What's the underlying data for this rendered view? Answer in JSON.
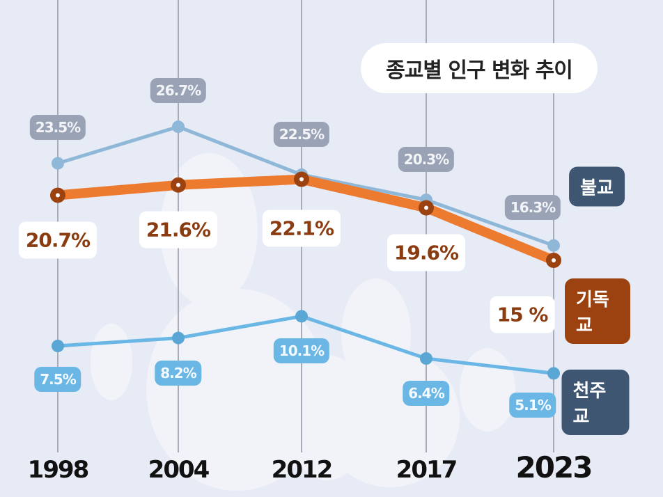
{
  "chart_data": {
    "type": "line",
    "title": "종교별 인구 변화 추이",
    "categories": [
      "1998",
      "2004",
      "2012",
      "2017",
      "2023"
    ],
    "series": [
      {
        "name": "불교",
        "values": [
          23.5,
          26.7,
          22.5,
          20.3,
          16.3
        ],
        "labels": [
          "23.5%",
          "26.7%",
          "22.5%",
          "20.3%",
          "16.3%"
        ],
        "color": "#8fb8d8",
        "tag_color": "#3f5672"
      },
      {
        "name": "기독교",
        "values": [
          20.7,
          21.6,
          22.1,
          19.6,
          15
        ],
        "labels": [
          "20.7%",
          "21.6%",
          "22.1%",
          "19.6%",
          "15 %"
        ],
        "color": "#ec7a2f",
        "tag_color": "#9c4211"
      },
      {
        "name": "천주교",
        "values": [
          7.5,
          8.2,
          10.1,
          6.4,
          5.1
        ],
        "labels": [
          "7.5%",
          "8.2%",
          "10.1%",
          "6.4%",
          "5.1%"
        ],
        "color": "#6ab7e6",
        "tag_color": "#3f5672"
      }
    ],
    "grid": "vertical",
    "legend": "inline-right"
  }
}
